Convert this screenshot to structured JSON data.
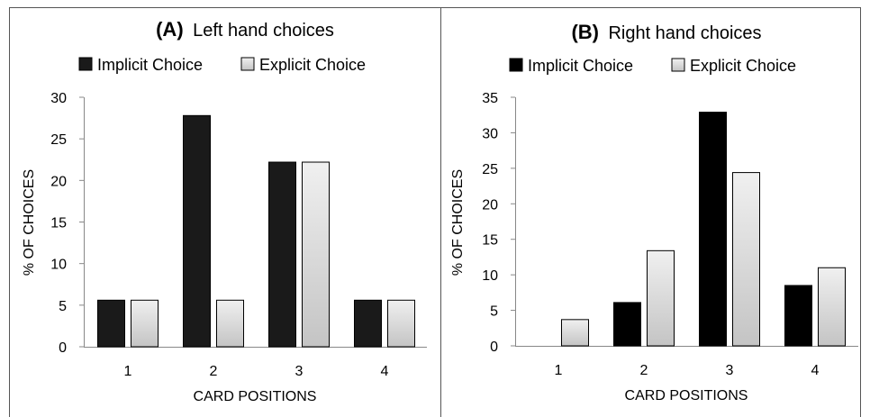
{
  "chart_data": [
    {
      "type": "bar",
      "title_prefix": "(A)",
      "title": "Left hand choices",
      "xlabel": "CARD POSITIONS",
      "ylabel": "% OF CHOICES",
      "categories": [
        "1",
        "2",
        "3",
        "4"
      ],
      "ylim": [
        0,
        30
      ],
      "yticks": [
        0,
        5,
        10,
        15,
        20,
        25,
        30
      ],
      "legend_position": "top",
      "series": [
        {
          "name": "Implicit Choice",
          "color": "#1a1a1a",
          "values": [
            5.6,
            27.8,
            22.2,
            5.6
          ]
        },
        {
          "name": "Explicit Choice",
          "color": "#d6d6d6",
          "values": [
            5.6,
            5.6,
            22.2,
            5.6
          ]
        }
      ]
    },
    {
      "type": "bar",
      "title_prefix": "(B)",
      "title": "Right hand choices",
      "xlabel": "CARD POSITIONS",
      "ylabel": "% OF CHOICES",
      "categories": [
        "1",
        "2",
        "3",
        "4"
      ],
      "ylim": [
        0,
        35
      ],
      "yticks": [
        0,
        5,
        10,
        15,
        20,
        25,
        30,
        35
      ],
      "legend_position": "top",
      "series": [
        {
          "name": "Implicit Choice",
          "color": "#000000",
          "values": [
            0,
            6.1,
            32.9,
            8.5
          ]
        },
        {
          "name": "Explicit Choice",
          "color": "#d6d6d6",
          "values": [
            3.7,
            13.4,
            24.4,
            11.0
          ]
        }
      ]
    }
  ]
}
